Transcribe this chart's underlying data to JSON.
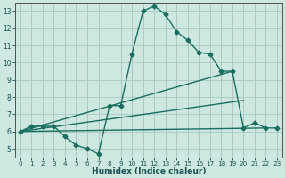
{
  "xlabel": "Humidex (Indice chaleur)",
  "background_color": "#cce8e0",
  "grid_color": "#aaccc4",
  "line_color": "#1a6e60",
  "xlim": [
    -0.5,
    23.5
  ],
  "ylim": [
    4.5,
    13.5
  ],
  "xticks": [
    0,
    1,
    2,
    3,
    4,
    5,
    6,
    7,
    8,
    9,
    10,
    11,
    12,
    13,
    14,
    15,
    16,
    17,
    18,
    19,
    20,
    21,
    22,
    23
  ],
  "yticks": [
    5,
    6,
    7,
    8,
    9,
    10,
    11,
    12,
    13
  ],
  "series": [
    {
      "x": [
        0,
        1,
        2,
        3,
        4,
        5,
        6,
        7,
        8,
        9,
        10,
        11,
        12,
        13,
        14,
        15,
        16,
        17,
        18,
        19,
        20,
        21,
        22,
        23
      ],
      "y": [
        6.0,
        6.3,
        6.3,
        6.3,
        5.7,
        5.2,
        5.0,
        4.7,
        7.5,
        7.5,
        10.5,
        13.0,
        13.3,
        12.8,
        11.8,
        11.3,
        10.6,
        10.5,
        9.5,
        9.5,
        6.2,
        6.5,
        6.2,
        6.2
      ],
      "marker": "D",
      "markersize": 2.5,
      "linewidth": 1.0
    },
    {
      "x": [
        0,
        19
      ],
      "y": [
        6.0,
        9.5
      ],
      "marker": null,
      "linewidth": 1.0
    },
    {
      "x": [
        0,
        20
      ],
      "y": [
        6.0,
        7.8
      ],
      "marker": null,
      "linewidth": 1.0
    },
    {
      "x": [
        0,
        22
      ],
      "y": [
        6.0,
        6.2
      ],
      "marker": null,
      "linewidth": 1.0
    }
  ]
}
